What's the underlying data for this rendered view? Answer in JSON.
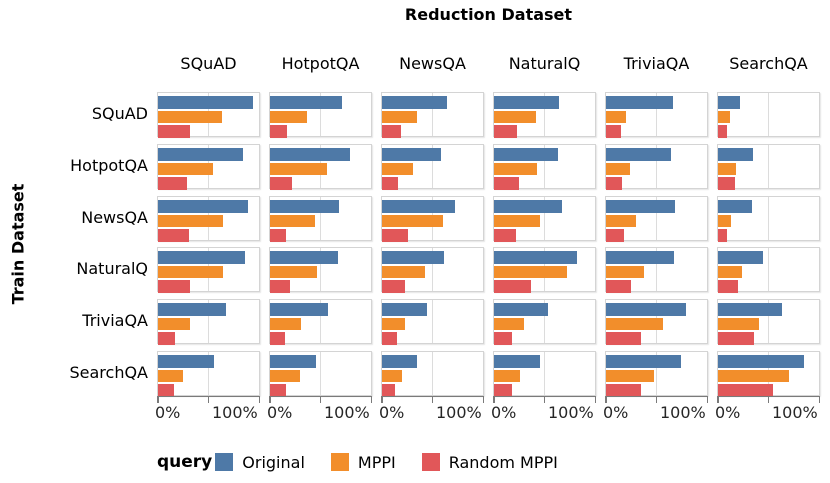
{
  "title": "Reduction Dataset",
  "y_axis_title": "Train Dataset",
  "legend": {
    "title": "query"
  },
  "colors": {
    "original": "#4E79A7",
    "mppi": "#F28E2B",
    "random_mppi": "#E15759",
    "panel_border": "#D4D4D4",
    "gridline": "#DCDCDC",
    "axis": "#7A7A7A",
    "text": "#000000"
  },
  "chart_data": {
    "type": "bar",
    "orientation": "horizontal",
    "facet": {
      "col_title": "Reduction Dataset",
      "row_title": "Train Dataset",
      "columns": [
        "SQuAD",
        "HotpotQA",
        "NewsQA",
        "NaturalQ",
        "TriviaQA",
        "SearchQA"
      ],
      "rows": [
        "SQuAD",
        "HotpotQA",
        "NewsQA",
        "NaturalQ",
        "TriviaQA",
        "SearchQA"
      ]
    },
    "series": [
      {
        "name": "Original",
        "color": "#4E79A7"
      },
      {
        "name": "MPPI",
        "color": "#F28E2B"
      },
      {
        "name": "Random MPPI",
        "color": "#E15759"
      }
    ],
    "x_axis": {
      "tick_labels": [
        "0%",
        "100%"
      ],
      "ticks_pct": [
        0,
        100
      ],
      "max_pct": 200,
      "gridline_pct": 100
    },
    "values_pct_rows_by_cols_series": [
      [
        [
          184,
          124,
          62
        ],
        [
          139,
          72,
          33
        ],
        [
          126,
          67,
          37
        ],
        [
          127,
          82,
          44
        ],
        [
          130,
          38,
          30
        ],
        [
          42,
          23,
          18
        ]
      ],
      [
        [
          166,
          107,
          56
        ],
        [
          156,
          111,
          43
        ],
        [
          114,
          60,
          32
        ],
        [
          125,
          84,
          49
        ],
        [
          127,
          46,
          31
        ],
        [
          67,
          34,
          33
        ]
      ],
      [
        [
          174,
          126,
          61
        ],
        [
          134,
          88,
          32
        ],
        [
          142,
          119,
          51
        ],
        [
          132,
          90,
          42
        ],
        [
          134,
          59,
          35
        ],
        [
          66,
          26,
          18
        ]
      ],
      [
        [
          168,
          126,
          63
        ],
        [
          132,
          92,
          39
        ],
        [
          121,
          84,
          45
        ],
        [
          162,
          141,
          72
        ],
        [
          132,
          74,
          49
        ],
        [
          87,
          47,
          38
        ]
      ],
      [
        [
          132,
          63,
          33
        ],
        [
          113,
          61,
          30
        ],
        [
          87,
          44,
          29
        ],
        [
          104,
          59,
          34
        ],
        [
          155,
          111,
          68
        ],
        [
          125,
          79,
          69
        ]
      ],
      [
        [
          108,
          49,
          32
        ],
        [
          89,
          58,
          32
        ],
        [
          67,
          38,
          25
        ],
        [
          90,
          51,
          35
        ],
        [
          146,
          94,
          68
        ],
        [
          167,
          138,
          107
        ]
      ]
    ]
  }
}
